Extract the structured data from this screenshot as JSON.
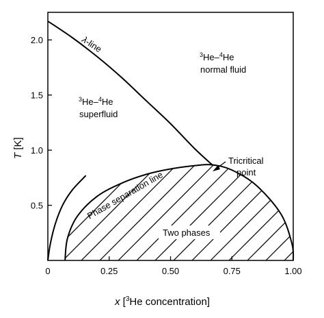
{
  "chart_data": {
    "type": "line",
    "title": "",
    "xlabel_prefix": "x",
    "xlabel_rest": "[",
    "xlabel_sup": "3",
    "xlabel_tail": "He concentration]",
    "ylabel": "T",
    "ylabel_unit": "[K]",
    "xlim": [
      0,
      1.0
    ],
    "ylim": [
      0,
      2.25
    ],
    "xticks": [
      0,
      0.25,
      0.5,
      0.75,
      1.0
    ],
    "xtick_labels": [
      "0",
      "0.25",
      "0.50",
      "0.75",
      "1.00"
    ],
    "yticks": [
      0.5,
      1.0,
      1.5,
      2.0
    ],
    "ytick_labels": [
      "0.5",
      "1.0",
      "1.5",
      "2.0"
    ],
    "grid": false,
    "series": [
      {
        "key": "lambda_line",
        "x": [
          0,
          0.1,
          0.2,
          0.3,
          0.4,
          0.5,
          0.6,
          0.67
        ],
        "y": [
          2.17,
          2.02,
          1.85,
          1.66,
          1.45,
          1.24,
          1.01,
          0.867
        ]
      },
      {
        "key": "phase_separation",
        "x": [
          0.07,
          0.08,
          0.12,
          0.2,
          0.3,
          0.4,
          0.5,
          0.6,
          0.67,
          0.75,
          0.85,
          0.95,
          0.995,
          1.0
        ],
        "y": [
          0,
          0.2,
          0.4,
          0.58,
          0.7,
          0.78,
          0.83,
          0.86,
          0.867,
          0.82,
          0.68,
          0.42,
          0.15,
          0
        ]
      },
      {
        "key": "left_branch",
        "x": [
          0,
          0.01,
          0.03,
          0.06,
          0.1,
          0.155
        ],
        "y": [
          0,
          0.15,
          0.33,
          0.5,
          0.64,
          0.77
        ]
      }
    ],
    "annotations": {
      "lambda_line": {
        "sym": "λ",
        "rest": "-line"
      },
      "normal_fluid": {
        "sup1": "3",
        "mid": "He–",
        "sup2": "4",
        "end": "He",
        "line2": "normal fluid"
      },
      "superfluid": {
        "sup1": "3",
        "mid": "He–",
        "sup2": "4",
        "end": "He",
        "line2": "superfluid"
      },
      "tricritical": {
        "line1": "Tricritical",
        "line2": "point",
        "x": 0.67,
        "y": 0.867
      },
      "phase_separation": "Phase separation line",
      "two_phases": "Two phases"
    }
  }
}
